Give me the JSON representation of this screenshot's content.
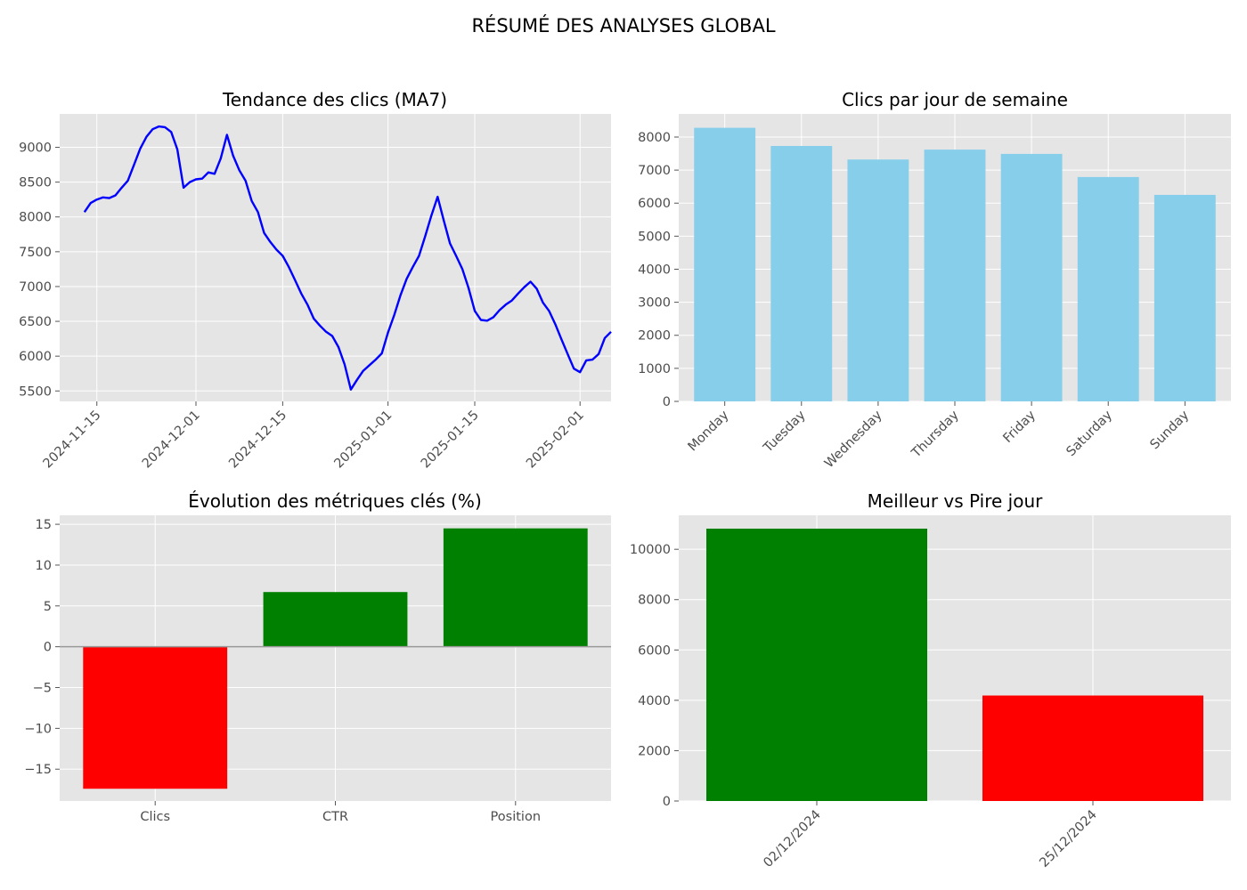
{
  "figure": {
    "title": "RÉSUMÉ DES ANALYSES GLOBAL"
  },
  "colors": {
    "panel_bg": "#e5e5e5",
    "line": "#0000ff",
    "weekday_bar": "#87ceeb",
    "positive": "#008000",
    "negative": "#ff0000",
    "zero_line": "#999999"
  },
  "chart_data": [
    {
      "type": "line",
      "title": "Tendance des clics (MA7)",
      "xlabel": "",
      "ylabel": "",
      "x_ticks": [
        "2024-11-15",
        "2024-12-01",
        "2024-12-15",
        "2025-01-01",
        "2025-01-15",
        "2025-02-01"
      ],
      "xlim": [
        "2024-11-09",
        "2025-02-06"
      ],
      "ylim": [
        5350,
        9480
      ],
      "y_ticks": [
        5500,
        6000,
        6500,
        7000,
        7500,
        8000,
        8500,
        9000
      ],
      "grid": true,
      "series": [
        {
          "points": [
            [
              "2024-11-13",
              8070
            ],
            [
              "2024-11-14",
              8200
            ],
            [
              "2024-11-15",
              8250
            ],
            [
              "2024-11-16",
              8280
            ],
            [
              "2024-11-17",
              8270
            ],
            [
              "2024-11-18",
              8310
            ],
            [
              "2024-11-19",
              8420
            ],
            [
              "2024-11-20",
              8520
            ],
            [
              "2024-11-21",
              8750
            ],
            [
              "2024-11-22",
              8980
            ],
            [
              "2024-11-23",
              9150
            ],
            [
              "2024-11-24",
              9260
            ],
            [
              "2024-11-25",
              9300
            ],
            [
              "2024-11-26",
              9290
            ],
            [
              "2024-11-27",
              9220
            ],
            [
              "2024-11-28",
              8970
            ],
            [
              "2024-11-29",
              8420
            ],
            [
              "2024-11-30",
              8500
            ],
            [
              "2024-12-01",
              8540
            ],
            [
              "2024-12-02",
              8550
            ],
            [
              "2024-12-03",
              8640
            ],
            [
              "2024-12-04",
              8620
            ],
            [
              "2024-12-05",
              8840
            ],
            [
              "2024-12-06",
              9180
            ],
            [
              "2024-12-07",
              8880
            ],
            [
              "2024-12-08",
              8670
            ],
            [
              "2024-12-09",
              8520
            ],
            [
              "2024-12-10",
              8230
            ],
            [
              "2024-12-11",
              8070
            ],
            [
              "2024-12-12",
              7770
            ],
            [
              "2024-12-13",
              7640
            ],
            [
              "2024-12-14",
              7530
            ],
            [
              "2024-12-15",
              7440
            ],
            [
              "2024-12-16",
              7280
            ],
            [
              "2024-12-17",
              7090
            ],
            [
              "2024-12-18",
              6900
            ],
            [
              "2024-12-19",
              6740
            ],
            [
              "2024-12-20",
              6540
            ],
            [
              "2024-12-21",
              6440
            ],
            [
              "2024-12-22",
              6350
            ],
            [
              "2024-12-23",
              6290
            ],
            [
              "2024-12-24",
              6130
            ],
            [
              "2024-12-25",
              5880
            ],
            [
              "2024-12-26",
              5520
            ],
            [
              "2024-12-27",
              5660
            ],
            [
              "2024-12-28",
              5790
            ],
            [
              "2024-12-29",
              5870
            ],
            [
              "2024-12-30",
              5950
            ],
            [
              "2024-12-31",
              6040
            ],
            [
              "2025-01-01",
              6340
            ],
            [
              "2025-01-02",
              6590
            ],
            [
              "2025-01-03",
              6870
            ],
            [
              "2025-01-04",
              7110
            ],
            [
              "2025-01-05",
              7280
            ],
            [
              "2025-01-06",
              7440
            ],
            [
              "2025-01-07",
              7720
            ],
            [
              "2025-01-08",
              8020
            ],
            [
              "2025-01-09",
              8290
            ],
            [
              "2025-01-10",
              7950
            ],
            [
              "2025-01-11",
              7620
            ],
            [
              "2025-01-12",
              7440
            ],
            [
              "2025-01-13",
              7250
            ],
            [
              "2025-01-14",
              6980
            ],
            [
              "2025-01-15",
              6650
            ],
            [
              "2025-01-16",
              6520
            ],
            [
              "2025-01-17",
              6510
            ],
            [
              "2025-01-18",
              6560
            ],
            [
              "2025-01-19",
              6660
            ],
            [
              "2025-01-20",
              6740
            ],
            [
              "2025-01-21",
              6800
            ],
            [
              "2025-01-22",
              6900
            ],
            [
              "2025-01-23",
              6990
            ],
            [
              "2025-01-24",
              7070
            ],
            [
              "2025-01-25",
              6970
            ],
            [
              "2025-01-26",
              6770
            ],
            [
              "2025-01-27",
              6650
            ],
            [
              "2025-01-28",
              6460
            ],
            [
              "2025-01-29",
              6240
            ],
            [
              "2025-01-30",
              6030
            ],
            [
              "2025-01-31",
              5820
            ],
            [
              "2025-02-01",
              5770
            ],
            [
              "2025-02-02",
              5940
            ],
            [
              "2025-02-03",
              5950
            ],
            [
              "2025-02-04",
              6030
            ],
            [
              "2025-02-05",
              6260
            ],
            [
              "2025-02-06",
              6350
            ]
          ]
        }
      ]
    },
    {
      "type": "bar",
      "title": "Clics par jour de semaine",
      "xlabel": "",
      "ylabel": "",
      "categories": [
        "Monday",
        "Tuesday",
        "Wednesday",
        "Thursday",
        "Friday",
        "Saturday",
        "Sunday"
      ],
      "values": [
        8280,
        7730,
        7320,
        7620,
        7490,
        6790,
        6250
      ],
      "ylim": [
        0,
        8700
      ],
      "y_ticks": [
        0,
        1000,
        2000,
        3000,
        4000,
        5000,
        6000,
        7000,
        8000
      ],
      "grid": true
    },
    {
      "type": "bar",
      "title": "Évolution des métriques clés (%)",
      "xlabel": "",
      "ylabel": "",
      "categories": [
        "Clics",
        "CTR",
        "Position"
      ],
      "values": [
        -17.4,
        6.7,
        14.5
      ],
      "ylim": [
        -18.9,
        16.1
      ],
      "y_ticks": [
        15,
        10,
        5,
        0,
        -5,
        -10,
        -15
      ],
      "y_tick_labels": [
        "15",
        "10",
        "5",
        "0",
        "−5",
        "−10",
        "−15"
      ],
      "grid": true
    },
    {
      "type": "bar",
      "title": "Meilleur vs Pire jour",
      "xlabel": "",
      "ylabel": "",
      "categories": [
        "02/12/2024",
        "25/12/2024"
      ],
      "values": [
        10820,
        4190
      ],
      "ylim": [
        0,
        11350
      ],
      "y_ticks": [
        0,
        2000,
        4000,
        6000,
        8000,
        10000
      ],
      "grid": true
    }
  ]
}
